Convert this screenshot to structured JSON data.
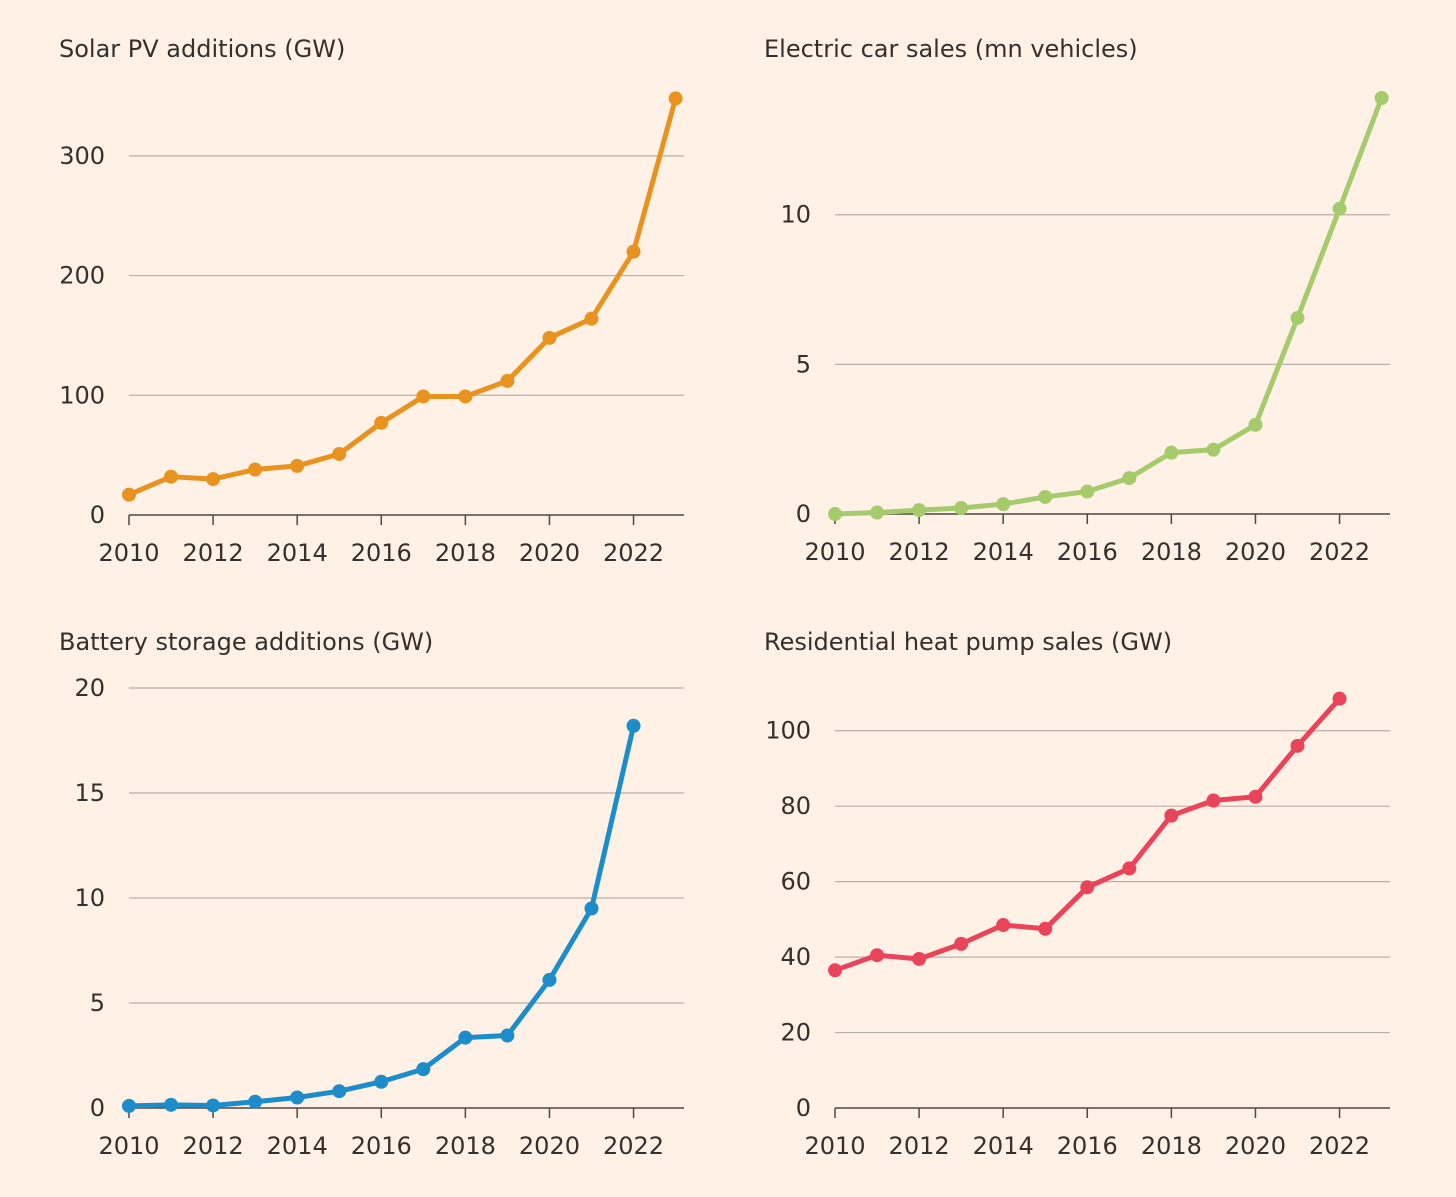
{
  "chart_data": [
    {
      "type": "line",
      "title": "Solar PV additions (GW)",
      "xlabel": "",
      "ylabel": "",
      "x": [
        2010,
        2011,
        2012,
        2013,
        2014,
        2015,
        2016,
        2017,
        2018,
        2019,
        2020,
        2021,
        2022,
        2023
      ],
      "series": [
        {
          "values": [
            17,
            32,
            30,
            38,
            41,
            51,
            77,
            99,
            99,
            112,
            148,
            164,
            220,
            348
          ],
          "color": "#e8921f"
        }
      ],
      "ylim": [
        0,
        350
      ],
      "xlim": [
        2010,
        2023.2
      ],
      "yticks": [
        0,
        100,
        200,
        300
      ],
      "xticks": [
        2010,
        2012,
        2014,
        2016,
        2018,
        2020,
        2022
      ],
      "grid": true,
      "legend": "none"
    },
    {
      "type": "line",
      "title": "Electric car sales (mn vehicles)",
      "xlabel": "",
      "ylabel": "",
      "x": [
        2010,
        2011,
        2012,
        2013,
        2014,
        2015,
        2016,
        2017,
        2018,
        2019,
        2020,
        2021,
        2022,
        2023
      ],
      "series": [
        {
          "values": [
            0.0,
            0.05,
            0.13,
            0.2,
            0.33,
            0.57,
            0.75,
            1.2,
            2.05,
            2.15,
            2.98,
            6.55,
            10.2,
            13.9
          ],
          "color": "#a5cb6c"
        }
      ],
      "ylim": [
        0,
        14
      ],
      "xlim": [
        2010,
        2023.2
      ],
      "yticks": [
        0,
        5,
        10
      ],
      "xticks": [
        2010,
        2012,
        2014,
        2016,
        2018,
        2020,
        2022
      ],
      "grid": true,
      "legend": "none"
    },
    {
      "type": "line",
      "title": "Battery storage additions (GW)",
      "xlabel": "",
      "ylabel": "",
      "x": [
        2010,
        2011,
        2012,
        2013,
        2014,
        2015,
        2016,
        2017,
        2018,
        2019,
        2020,
        2021,
        2022
      ],
      "series": [
        {
          "values": [
            0.1,
            0.15,
            0.12,
            0.3,
            0.5,
            0.8,
            1.25,
            1.85,
            3.35,
            3.45,
            6.1,
            9.5,
            18.2
          ],
          "color": "#1c8ccb"
        }
      ],
      "ylim": [
        0,
        20
      ],
      "xlim": [
        2010,
        2023.2
      ],
      "yticks": [
        0,
        5,
        10,
        15,
        20
      ],
      "xticks": [
        2010,
        2012,
        2014,
        2016,
        2018,
        2020,
        2022
      ],
      "grid": true,
      "legend": "none"
    },
    {
      "type": "line",
      "title": "Residential heat pump sales (GW)",
      "xlabel": "",
      "ylabel": "",
      "x": [
        2010,
        2011,
        2012,
        2013,
        2014,
        2015,
        2016,
        2017,
        2018,
        2019,
        2020,
        2021,
        2022
      ],
      "series": [
        {
          "values": [
            36.5,
            40.5,
            39.5,
            43.5,
            48.5,
            47.5,
            58.5,
            63.5,
            77.5,
            81.5,
            82.5,
            96,
            108.5
          ],
          "color": "#e9445a"
        }
      ],
      "ylim": [
        0,
        110
      ],
      "xlim": [
        2010,
        2023.2
      ],
      "yticks": [
        0,
        20,
        40,
        60,
        80,
        100
      ],
      "xticks": [
        2010,
        2012,
        2014,
        2016,
        2018,
        2020,
        2022
      ],
      "grid": true,
      "legend": "none"
    }
  ]
}
